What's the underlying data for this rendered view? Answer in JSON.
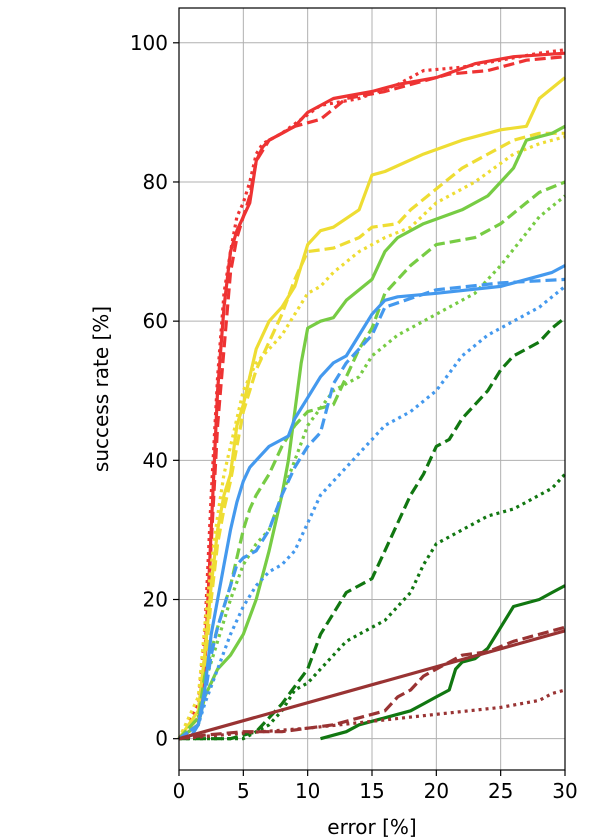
{
  "chart_data": {
    "type": "line",
    "xlabel": "error [%]",
    "ylabel": "success rate [%]",
    "xlim": [
      0,
      30
    ],
    "ylim": [
      -4.5,
      105
    ],
    "xticks": [
      "0",
      "5",
      "10",
      "15",
      "20",
      "25",
      "30"
    ],
    "yticks": [
      "0",
      "20",
      "40",
      "60",
      "80",
      "100"
    ],
    "grid": true,
    "legend": "none",
    "series": [
      {
        "color": "#ee3333",
        "style": "solid",
        "x": [
          0,
          1.5,
          2.0,
          2.5,
          3.0,
          3.5,
          4.0,
          4.5,
          5.0,
          5.5,
          6.0,
          6.5,
          7.0,
          8.0,
          9.0,
          10.0,
          12.0,
          15.0,
          17.0,
          20.0,
          23.0,
          26.0,
          30.0
        ],
        "y": [
          0,
          2,
          10,
          30,
          50,
          62,
          70,
          73,
          75,
          77,
          83,
          85,
          86,
          87,
          88,
          90,
          92,
          93,
          94,
          95,
          97,
          98,
          98.5
        ]
      },
      {
        "color": "#ee3333",
        "style": "dashed",
        "x": [
          0,
          1.5,
          2.0,
          2.5,
          3.0,
          3.5,
          4.0,
          4.5,
          5.0,
          5.5,
          6.0,
          6.5,
          7.0,
          8.0,
          9.0,
          10.0,
          11.0,
          13.0,
          16.0,
          18.0,
          21.0,
          24.0,
          27.0,
          30.0
        ],
        "y": [
          0,
          3,
          12,
          28,
          45,
          56,
          67,
          72,
          75,
          78,
          83,
          84.5,
          86,
          87,
          88,
          88.5,
          89,
          92,
          93,
          94,
          95.5,
          96,
          97.5,
          98
        ]
      },
      {
        "color": "#ee3333",
        "style": "dotted",
        "x": [
          0,
          1.5,
          2.0,
          2.5,
          3.0,
          3.5,
          4.0,
          4.5,
          5.0,
          5.5,
          6.0,
          6.5,
          7.0,
          8.0,
          9.5,
          11.0,
          14.0,
          17.0,
          19.0,
          22.0,
          25.0,
          28.0,
          30.0
        ],
        "y": [
          0,
          5,
          15,
          35,
          52,
          64,
          70,
          75,
          77,
          80,
          84,
          85.5,
          86,
          87,
          89,
          91,
          92,
          94,
          96,
          96.5,
          97.5,
          98.5,
          99
        ]
      },
      {
        "color": "#eedd33",
        "style": "solid",
        "x": [
          0,
          1.5,
          2.0,
          2.5,
          3.0,
          3.5,
          4.0,
          4.5,
          5.0,
          6.0,
          7.0,
          8.0,
          9.0,
          10.0,
          11.0,
          12.0,
          14.0,
          15.0,
          16.0,
          19.0,
          22.0,
          25.0,
          27.0,
          28.0,
          30.0
        ],
        "y": [
          0,
          4,
          12,
          22,
          30,
          35,
          38,
          45,
          48,
          56,
          60,
          62,
          65,
          71,
          73,
          73.5,
          76,
          81,
          81.5,
          84,
          86,
          87.5,
          88,
          92,
          95
        ]
      },
      {
        "color": "#eedd33",
        "style": "dashed",
        "x": [
          0,
          1.5,
          2.0,
          2.5,
          3.0,
          3.5,
          4.0,
          4.5,
          5.0,
          6.0,
          7.0,
          8.0,
          9.0,
          10.0,
          12.0,
          14.0,
          15.0,
          17.0,
          18.0,
          20.0,
          22.0,
          24.0,
          26.0,
          28.0,
          30.0
        ],
        "y": [
          0,
          3,
          10,
          20,
          28,
          33,
          37,
          42,
          47,
          53,
          57,
          61,
          66,
          70,
          70.5,
          72,
          73.5,
          74,
          76,
          79,
          82,
          84,
          86,
          87,
          87
        ]
      },
      {
        "color": "#eedd33",
        "style": "dotted",
        "x": [
          0,
          1.5,
          2.0,
          2.5,
          3.0,
          3.5,
          4.0,
          4.5,
          5.0,
          6.0,
          7.0,
          8.0,
          9.0,
          10.0,
          11.0,
          12.0,
          14.0,
          16.0,
          18.0,
          20.0,
          23.0,
          26.0,
          28.0,
          30.0
        ],
        "y": [
          0,
          6,
          16,
          25,
          32,
          38,
          42,
          46,
          50,
          54,
          56,
          58,
          61,
          64,
          65,
          67,
          70,
          72,
          73.5,
          77,
          80,
          84,
          85.5,
          86.5
        ]
      },
      {
        "color": "#77cc44",
        "style": "solid",
        "x": [
          0,
          1.5,
          2.0,
          3.0,
          4.0,
          5.0,
          6.0,
          7.0,
          8.0,
          8.5,
          9.0,
          9.5,
          10.0,
          11.0,
          12.0,
          13.0,
          15.0,
          16.0,
          17.0,
          19.0,
          22.0,
          24.0,
          25.0,
          26.0,
          27.0,
          28.0,
          29.0,
          30.0
        ],
        "y": [
          0,
          2,
          6,
          10,
          12,
          15,
          20,
          27,
          35,
          40,
          47,
          54,
          59,
          60,
          60.5,
          63,
          66,
          70,
          72,
          74,
          76,
          78,
          80,
          82,
          86,
          86.5,
          87,
          88
        ]
      },
      {
        "color": "#77cc44",
        "style": "dashed",
        "x": [
          0,
          1.5,
          2.0,
          3.0,
          4.0,
          5.0,
          5.5,
          6.0,
          7.0,
          8.0,
          9.0,
          10.0,
          12.0,
          13.0,
          14.0,
          15.0,
          16.0,
          17.0,
          18.0,
          20.0,
          23.0,
          25.0,
          27.0,
          28.0,
          30.0
        ],
        "y": [
          0,
          3,
          9,
          16,
          22,
          30,
          33,
          35,
          38,
          42,
          45,
          47,
          48,
          52,
          56,
          59,
          64,
          66,
          68,
          71,
          72,
          74,
          77,
          78.5,
          80
        ]
      },
      {
        "color": "#77cc44",
        "style": "dotted",
        "x": [
          0,
          1.5,
          2.0,
          3.0,
          4.0,
          5.0,
          6.0,
          7.0,
          8.0,
          10.0,
          12.0,
          14.0,
          15.0,
          16.0,
          17.0,
          19.0,
          21.0,
          23.0,
          25.0,
          28.0,
          30.0
        ],
        "y": [
          0,
          3,
          8,
          14,
          20,
          25,
          28,
          30,
          35,
          45,
          50,
          52,
          55,
          56.5,
          58,
          60,
          62,
          64,
          68,
          75,
          78
        ]
      },
      {
        "color": "#4499ee",
        "style": "solid",
        "x": [
          0,
          1.0,
          1.5,
          2.0,
          2.5,
          3.0,
          3.5,
          4.0,
          4.5,
          5.0,
          5.5,
          6.0,
          7.0,
          8.0,
          8.5,
          9.0,
          10.0,
          11.0,
          12.0,
          13.0,
          14.0,
          15.0,
          16.0,
          17.0,
          20.0,
          25.0,
          27.0,
          29.0,
          30.0
        ],
        "y": [
          0,
          0.5,
          2,
          7,
          15,
          20,
          25,
          30,
          34,
          37,
          39,
          40,
          42,
          43,
          43.5,
          46,
          49,
          52,
          54,
          55,
          58,
          61,
          63,
          63.5,
          64,
          65,
          66,
          67,
          68
        ]
      },
      {
        "color": "#4499ee",
        "style": "dashed",
        "x": [
          0,
          1.5,
          2.0,
          2.5,
          3.0,
          3.5,
          4.0,
          4.5,
          5.0,
          6.0,
          7.0,
          8.0,
          9.0,
          10.0,
          11.0,
          12.0,
          13.0,
          14.0,
          15.0,
          16.0,
          20.0,
          25.0,
          30.0
        ],
        "y": [
          0,
          2,
          6,
          12,
          16,
          19,
          22,
          25,
          26,
          27,
          30,
          35,
          39,
          42,
          44,
          51,
          54,
          56,
          58,
          62,
          64.5,
          65.5,
          66
        ]
      },
      {
        "color": "#4499ee",
        "style": "dotted",
        "x": [
          0,
          1.5,
          2.0,
          3.0,
          4.0,
          5.0,
          6.0,
          7.0,
          8.0,
          9.0,
          10.0,
          11.0,
          12.0,
          13.0,
          14.0,
          16.0,
          18.0,
          20.0,
          22.0,
          24.0,
          26.0,
          28.0,
          30.0
        ],
        "y": [
          0,
          2,
          5,
          10,
          15,
          19,
          22,
          24,
          25,
          27,
          31,
          35,
          37,
          39,
          41,
          45,
          47,
          50,
          55,
          58,
          60,
          62,
          65
        ]
      },
      {
        "color": "#117711",
        "style": "dashed",
        "x": [
          0,
          4.0,
          5.0,
          6.0,
          7.0,
          8.0,
          9.0,
          10.0,
          11.0,
          12.0,
          13.0,
          14.0,
          15.0,
          16.0,
          17.0,
          18.0,
          19.0,
          20.0,
          21.0,
          22.0,
          23.0,
          24.0,
          25.0,
          26.0,
          27.0,
          28.0,
          29.0,
          30.0
        ],
        "y": [
          0,
          0,
          0.5,
          1,
          3,
          5,
          7.5,
          10,
          15,
          18,
          21,
          22,
          23,
          27,
          31,
          35,
          38,
          42,
          43,
          46,
          48,
          50,
          53,
          55,
          56,
          57,
          59,
          60.5
        ]
      },
      {
        "color": "#117711",
        "style": "dotted",
        "x": [
          0,
          5.0,
          6.0,
          7.0,
          8.0,
          9.0,
          10.0,
          11.0,
          12.0,
          13.0,
          14.0,
          15.0,
          16.0,
          17.0,
          18.0,
          19.0,
          20.0,
          21.0,
          22.0,
          23.0,
          24.0,
          25.0,
          26.0,
          27.0,
          28.0,
          29.0,
          30.0
        ],
        "y": [
          0,
          0,
          1,
          2,
          4,
          7,
          8,
          10,
          12,
          14,
          15,
          16,
          17,
          19,
          21,
          25,
          28,
          29,
          30,
          31,
          32,
          32.5,
          33,
          34,
          35,
          36,
          38
        ]
      },
      {
        "color": "#117711",
        "style": "solid",
        "x": [
          11.0,
          12.0,
          13.0,
          14.0,
          15.0,
          16.0,
          17.0,
          18.0,
          19.0,
          20.0,
          21.0,
          21.5,
          22.0,
          23.0,
          24.0,
          25.0,
          26.0,
          27.0,
          28.0,
          29.0,
          30.0
        ],
        "y": [
          0,
          0.5,
          1,
          2,
          2.5,
          3,
          3.5,
          4,
          5,
          6,
          7,
          10,
          11,
          11.5,
          13,
          16,
          19,
          19.5,
          20,
          21,
          22
        ]
      },
      {
        "color": "#993333",
        "style": "solid",
        "x": [
          0,
          30
        ],
        "y": [
          0,
          15.5
        ]
      },
      {
        "color": "#993333",
        "style": "dashed",
        "x": [
          0,
          2.0,
          5.0,
          8.0,
          10.0,
          12.0,
          14.0,
          16.0,
          17.0,
          18.0,
          19.0,
          20.0,
          22.0,
          24.0,
          26.0,
          28.0,
          30.0
        ],
        "y": [
          0,
          0.5,
          1,
          1,
          1.5,
          2,
          3,
          4,
          6,
          7,
          9,
          10,
          12,
          12.5,
          14,
          15,
          16
        ]
      },
      {
        "color": "#993333",
        "style": "dotted",
        "x": [
          0,
          5.0,
          10.0,
          15.0,
          20.0,
          25.0,
          28.0,
          29.0,
          30.0
        ],
        "y": [
          0,
          0.8,
          1.5,
          2.5,
          3.5,
          4.5,
          5.5,
          6.5,
          7
        ]
      }
    ]
  }
}
